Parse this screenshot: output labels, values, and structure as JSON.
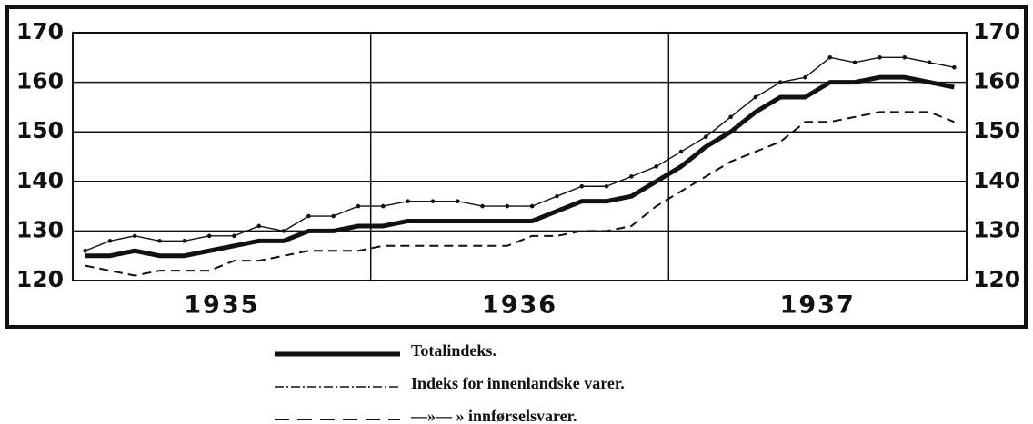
{
  "chart_data": {
    "type": "line",
    "categories": [
      null,
      null,
      null,
      null,
      null,
      null,
      null,
      null,
      null,
      null,
      null,
      null,
      null,
      null,
      null,
      null,
      null,
      null,
      null,
      null,
      null,
      null,
      null,
      null,
      null,
      null,
      null,
      null,
      null,
      null,
      null,
      null,
      null,
      null,
      null,
      null
    ],
    "year_groups": [
      "1935",
      "1936",
      "1937"
    ],
    "ylim": [
      120,
      170
    ],
    "yticks": [
      120,
      130,
      140,
      150,
      160,
      170
    ],
    "grid": true,
    "series": [
      {
        "name": "Totalindeks.",
        "color": "#111111",
        "style": "thick",
        "values": [
          125,
          125,
          126,
          125,
          125,
          126,
          127,
          128,
          128,
          130,
          130,
          131,
          131,
          132,
          132,
          132,
          132,
          132,
          132,
          134,
          136,
          136,
          137,
          140,
          143,
          147,
          150,
          154,
          157,
          157,
          160,
          160,
          161,
          161,
          160,
          159
        ]
      },
      {
        "name": "Indeks for innenlandske varer.",
        "color": "#111111",
        "style": "dots",
        "values": [
          126,
          128,
          129,
          128,
          128,
          129,
          129,
          131,
          130,
          133,
          133,
          135,
          135,
          136,
          136,
          136,
          135,
          135,
          135,
          137,
          139,
          139,
          141,
          143,
          146,
          149,
          153,
          157,
          160,
          161,
          165,
          164,
          165,
          165,
          164,
          163
        ]
      },
      {
        "name": "—»—   »   innførselsvarer.",
        "color": "#111111",
        "style": "dashed",
        "values": [
          123,
          122,
          121,
          122,
          122,
          122,
          124,
          124,
          125,
          126,
          126,
          126,
          127,
          127,
          127,
          127,
          127,
          127,
          129,
          129,
          130,
          130,
          131,
          135,
          138,
          141,
          144,
          146,
          148,
          152,
          152,
          153,
          154,
          154,
          154,
          152
        ]
      }
    ]
  }
}
